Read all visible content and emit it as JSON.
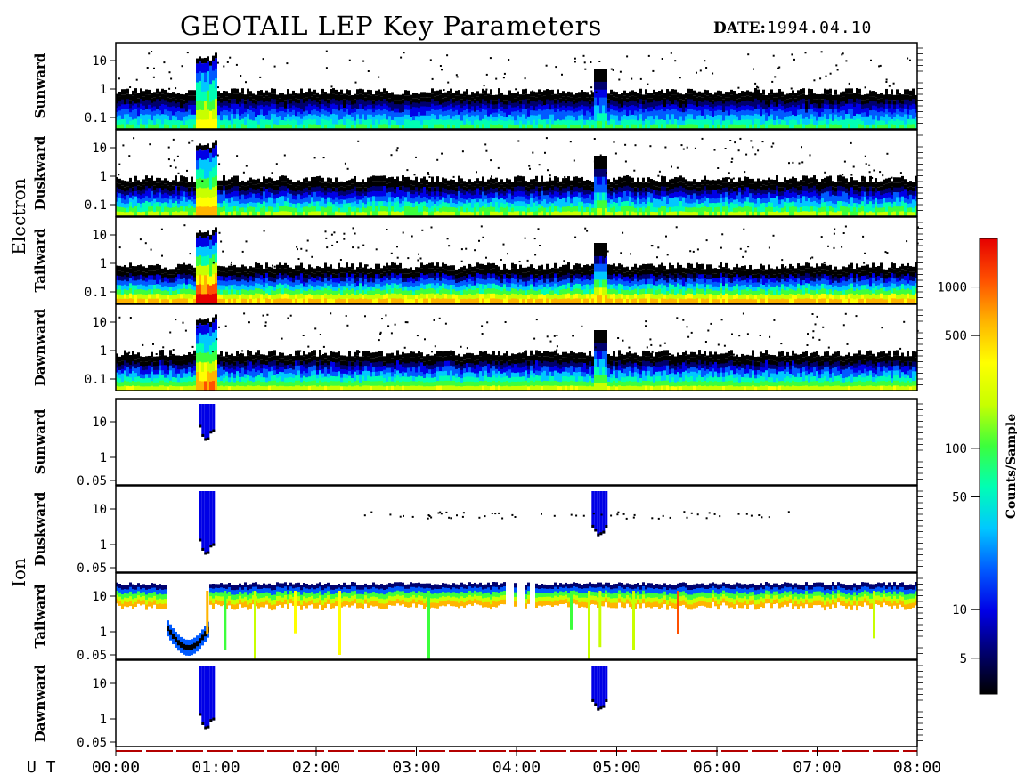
{
  "header": {
    "title": "GEOTAIL LEP Key Parameters",
    "date_label": "DATE:",
    "date_value": "1994.04.10"
  },
  "chart_data": {
    "type": "heatmap",
    "title": "GEOTAIL LEP Key Parameters",
    "date": "1994.04.10",
    "x_axis": {
      "label": "U T",
      "range": [
        "00:00",
        "08:00"
      ],
      "ticks": [
        "00:00",
        "01:00",
        "02:00",
        "03:00",
        "04:00",
        "05:00",
        "06:00",
        "07:00",
        "08:00"
      ]
    },
    "groups": [
      {
        "name": "Electron",
        "y_scale": "log",
        "y_ticks": [
          "10",
          "1",
          "0.1"
        ],
        "panels": [
          {
            "label": "Sunward"
          },
          {
            "label": "Duskward"
          },
          {
            "label": "Tailward"
          },
          {
            "label": "Dawnward"
          }
        ]
      },
      {
        "name": "Ion",
        "y_scale": "log",
        "y_ticks": [
          "10",
          "1",
          "0.05"
        ],
        "panels": [
          {
            "label": "Sunward"
          },
          {
            "label": "Duskward"
          },
          {
            "label": "Tailward"
          },
          {
            "label": "Dawnward"
          }
        ]
      }
    ],
    "events_ut_hours": [
      0.9,
      4.82
    ],
    "colorbar": {
      "label": "Counts/Sample",
      "scale": "log",
      "range": [
        3,
        2000
      ],
      "ticks": [
        "1000",
        "500",
        "100",
        "50",
        "10",
        "5"
      ],
      "colormap": [
        "#000000",
        "#00006e",
        "#0000e6",
        "#005aff",
        "#00c8ff",
        "#00ffb4",
        "#3cff3c",
        "#c8ff00",
        "#ffff00",
        "#ffb400",
        "#ff5000",
        "#e60000"
      ]
    }
  }
}
